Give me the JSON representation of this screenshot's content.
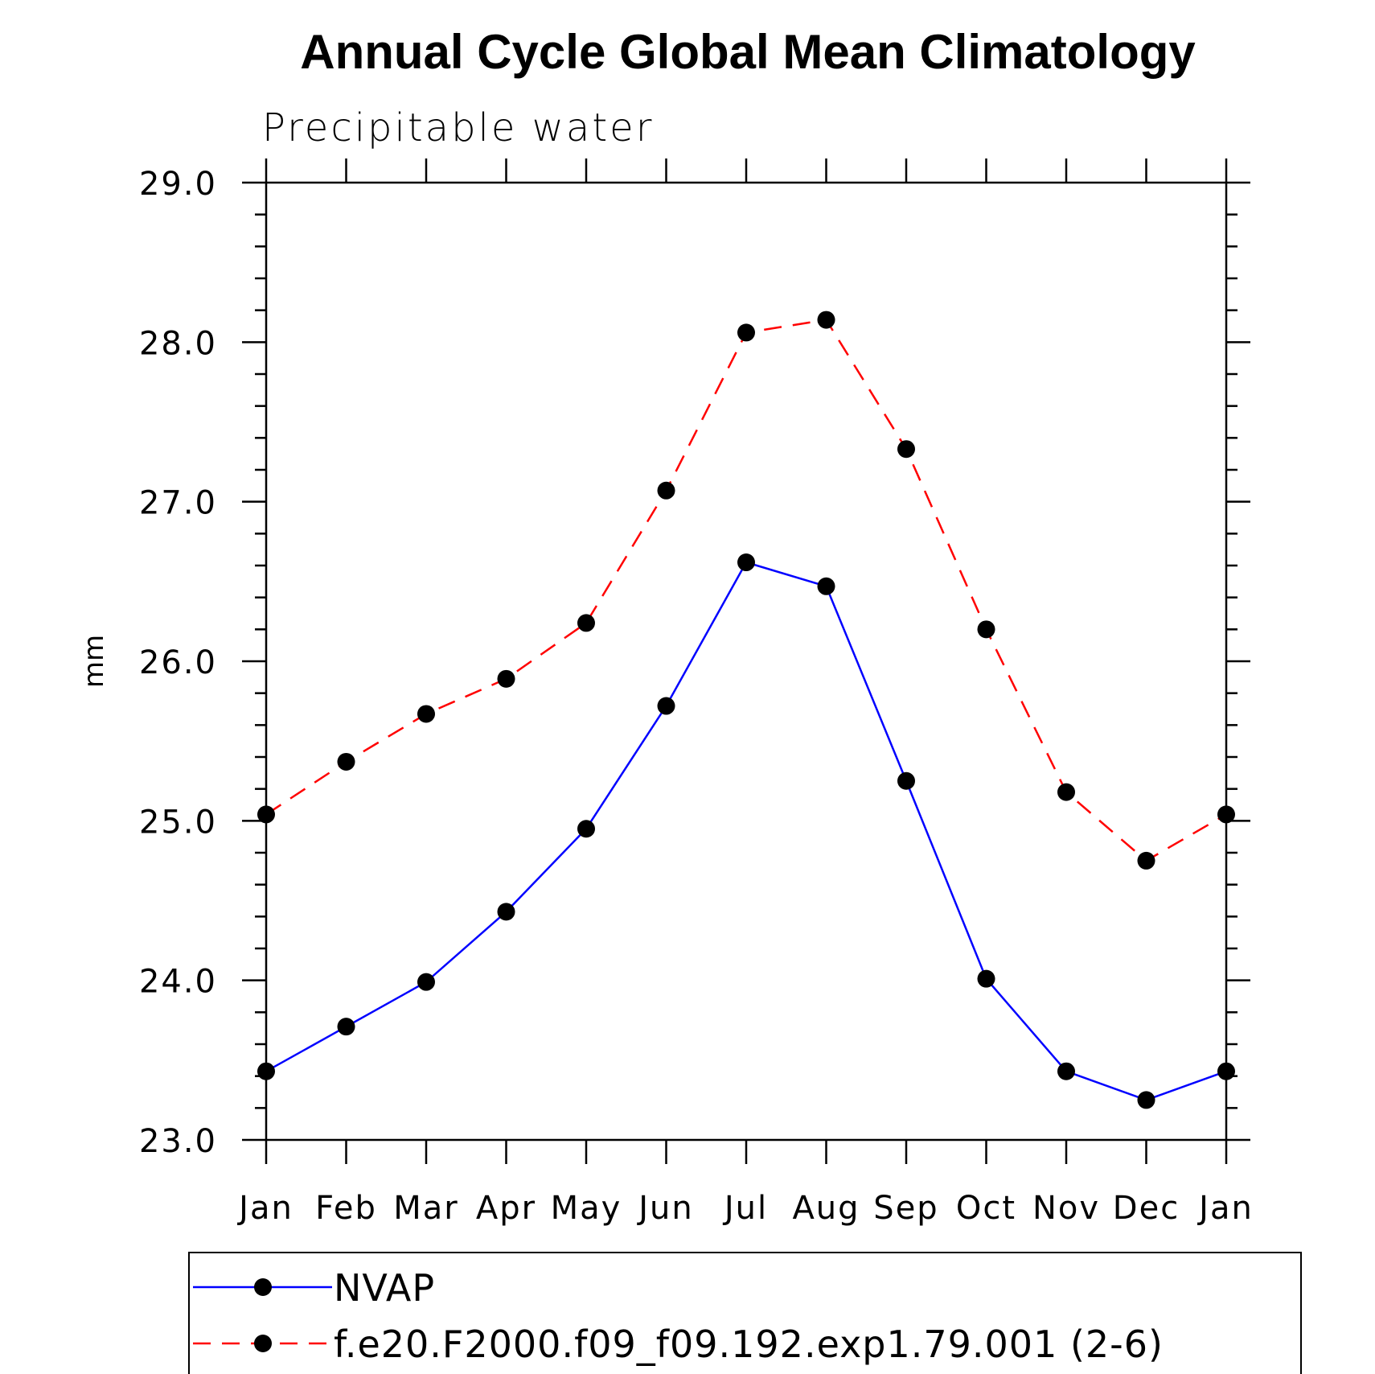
{
  "chart_data": {
    "type": "line",
    "title": "Annual Cycle Global Mean Climatology",
    "subtitle": "Precipitable water",
    "xlabel": "",
    "ylabel": "mm",
    "categories": [
      "Jan",
      "Feb",
      "Mar",
      "Apr",
      "May",
      "Jun",
      "Jul",
      "Aug",
      "Sep",
      "Oct",
      "Nov",
      "Dec",
      "Jan"
    ],
    "ylim": [
      23.0,
      29.0
    ],
    "yticks": [
      23.0,
      24.0,
      25.0,
      26.0,
      27.0,
      28.0,
      29.0
    ],
    "ytick_labels": [
      "23.0",
      "24.0",
      "25.0",
      "26.0",
      "27.0",
      "28.0",
      "29.0"
    ],
    "series": [
      {
        "name": "NVAP",
        "color": "#0000ff",
        "dashed": false,
        "values": [
          23.43,
          23.71,
          23.99,
          24.43,
          24.95,
          25.72,
          26.62,
          26.47,
          25.25,
          24.01,
          23.43,
          23.25,
          23.43
        ]
      },
      {
        "name": "f.e20.F2000.f09_f09.192.exp1.79.001 (2-6)",
        "color": "#ff0000",
        "dashed": true,
        "values": [
          25.04,
          25.37,
          25.67,
          25.89,
          26.24,
          27.07,
          28.06,
          28.14,
          27.33,
          26.2,
          25.18,
          24.75,
          25.04
        ]
      }
    ],
    "marker": "filled-circle",
    "marker_color": "#000000",
    "legend_position": "bottom"
  }
}
